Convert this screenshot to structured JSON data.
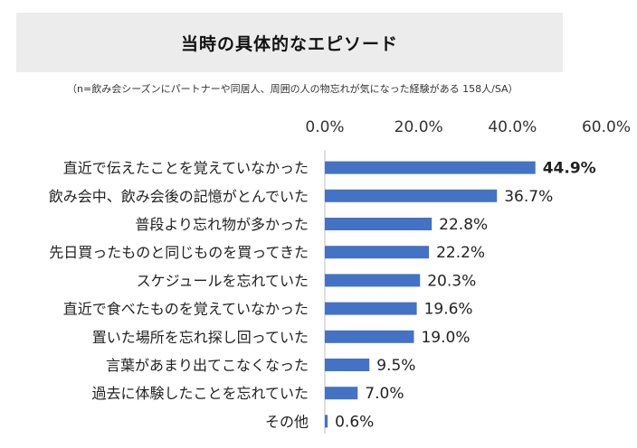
{
  "chart_data": {
    "type": "bar",
    "orientation": "horizontal",
    "title": "当時の具体的なエピソード",
    "subtitle": "（n=飲み会シーズンにパートナーや同居人、周囲の人の物忘れが気になった経験がある 158人/SA）",
    "categories": [
      "直近で伝えたことを覚えていなかった",
      "飲み会中、飲み会後の記憶がとんでいた",
      "普段より忘れ物が多かった",
      "先日買ったものと同じものを買ってきた",
      "スケジュールを忘れていた",
      "直近で食べたものを覚えていなかった",
      "置いた場所を忘れ探し回っていた",
      "言葉があまり出てこなくなった",
      "過去に体験したことを忘れていた",
      "その他"
    ],
    "values": [
      44.9,
      36.7,
      22.8,
      22.2,
      20.3,
      19.6,
      19.0,
      9.5,
      7.0,
      0.6
    ],
    "value_labels": [
      "44.9%",
      "36.7%",
      "22.8%",
      "22.2%",
      "20.3%",
      "19.6%",
      "19.0%",
      "9.5%",
      "7.0%",
      "0.6%"
    ],
    "highlight_index": 0,
    "xlim": [
      0,
      60
    ],
    "ticks": [
      0,
      20,
      40,
      60
    ],
    "tick_labels": [
      "0.0%",
      "20.0%",
      "40.0%",
      "60.0%"
    ],
    "axis_position": "top",
    "grid": false,
    "bar_color": "#4472c4",
    "xlabel": "",
    "ylabel": ""
  }
}
